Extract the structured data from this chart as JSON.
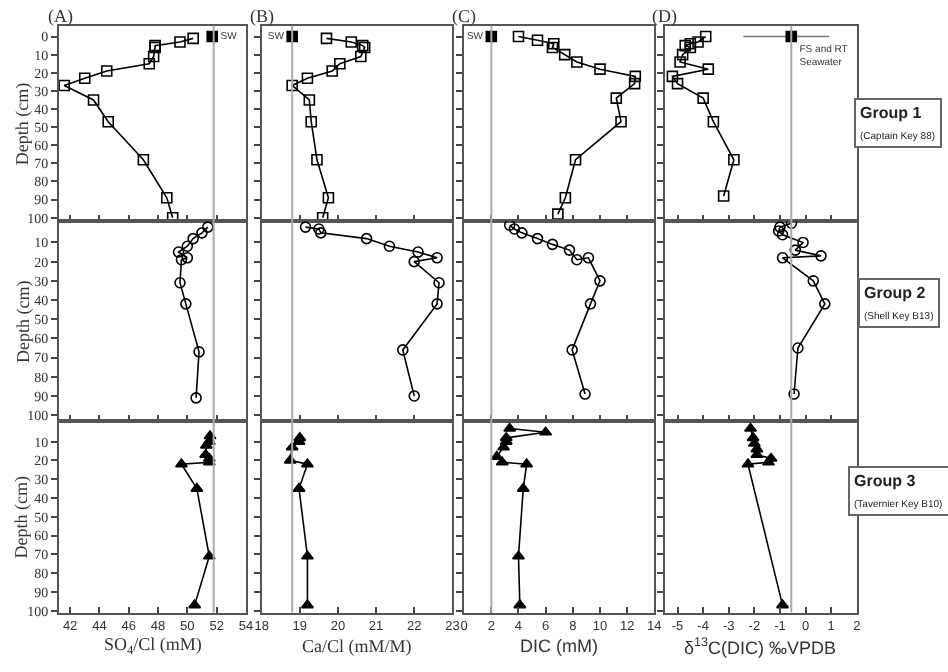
{
  "chart_data": [
    {
      "type": "line",
      "title": "(A)",
      "ylabel": "Depth (cm)",
      "marker": "square",
      "xlim": [
        41.25,
        54
      ],
      "xticks": [
        42,
        44,
        46,
        48,
        50,
        52,
        54
      ],
      "ylim": [
        102,
        -6
      ],
      "yticks": [
        0,
        10,
        20,
        30,
        40,
        50,
        60,
        70,
        80,
        90,
        100
      ],
      "tick_labels": "y",
      "ref_lines": [
        {
          "axis": "x",
          "value": 51.8,
          "color": "#aaaaaa"
        }
      ],
      "series": [
        {
          "color": "#000000",
          "x": [
            50.4,
            49.5,
            47.8,
            47.8,
            47.7,
            47.4,
            44.5,
            43.0,
            41.6,
            43.6,
            44.6,
            47.0,
            48.6,
            49.0
          ],
          "values": [
            1,
            3,
            5,
            6,
            11,
            15,
            19,
            23,
            27,
            35,
            47,
            68,
            89,
            100
          ]
        },
        {
          "type": "scatter",
          "name": "SW",
          "color": "#000000",
          "x": [
            51.7
          ],
          "values": [
            0
          ]
        }
      ]
    },
    {
      "type": "line",
      "title": "(B)",
      "marker": "square",
      "xlim": [
        18,
        23
      ],
      "xticks": [
        18,
        19,
        20,
        21,
        22,
        23
      ],
      "ylim": [
        102,
        -6
      ],
      "yticks": [
        0,
        10,
        20,
        30,
        40,
        50,
        60,
        70,
        80,
        90,
        100
      ],
      "tick_labels": false,
      "ref_lines": [
        {
          "axis": "x",
          "value": 18.8,
          "color": "#aaaaaa"
        }
      ],
      "series": [
        {
          "color": "#000000",
          "x": [
            19.7,
            20.35,
            20.65,
            20.7,
            20.6,
            20.05,
            19.85,
            19.2,
            18.8,
            19.25,
            19.3,
            19.45,
            19.75,
            19.6
          ],
          "values": [
            1,
            3,
            5,
            6,
            11,
            15,
            19,
            23,
            27,
            35,
            47,
            68,
            89,
            100
          ]
        },
        {
          "type": "scatter",
          "name": "SW",
          "color": "#000000",
          "x": [
            18.8
          ],
          "values": [
            0
          ]
        }
      ]
    },
    {
      "type": "line",
      "title": "(C)",
      "marker": "square",
      "xlim": [
        0,
        14
      ],
      "xticks": [
        0,
        2,
        4,
        6,
        8,
        10,
        12,
        14
      ],
      "ylim": [
        102,
        -6
      ],
      "yticks": [
        0,
        10,
        20,
        30,
        40,
        50,
        60,
        70,
        80,
        90,
        100
      ],
      "tick_labels": false,
      "ref_lines": [
        {
          "axis": "x",
          "value": 2.0,
          "color": "#aaaaaa"
        }
      ],
      "series": [
        {
          "color": "#000000",
          "x": [
            4.0,
            5.4,
            6.6,
            6.5,
            7.4,
            8.3,
            10.0,
            12.6,
            12.55,
            11.2,
            11.55,
            8.2,
            7.45,
            6.9
          ],
          "values": [
            0,
            2,
            4,
            6,
            10,
            14,
            18,
            22,
            26,
            34,
            47,
            68,
            89,
            98
          ]
        },
        {
          "type": "scatter",
          "name": "SW",
          "color": "#000000",
          "x": [
            2.0
          ],
          "values": [
            0
          ]
        }
      ]
    },
    {
      "type": "line",
      "title": "(D)",
      "marker": "square",
      "xlim": [
        -5.5,
        2
      ],
      "xticks": [
        -5,
        -4,
        -3,
        -2,
        -1,
        0,
        1,
        2
      ],
      "ylim": [
        102,
        -6
      ],
      "yticks": [
        0,
        10,
        20,
        30,
        40,
        50,
        60,
        70,
        80,
        90,
        100
      ],
      "tick_labels": false,
      "ref_lines": [
        {
          "axis": "x",
          "value": -0.56,
          "color": "#aaaaaa"
        }
      ],
      "annotations": [
        "Group 1",
        "(Captain Key 88)"
      ],
      "series": [
        {
          "color": "#000000",
          "x": [
            -3.9,
            -4.2,
            -4.5,
            -4.7,
            -4.5,
            -4.8,
            -4.9,
            -3.8,
            -5.2,
            -5.0,
            -4.0,
            -3.6,
            -2.8,
            -3.2
          ],
          "values": [
            0,
            3,
            4,
            5,
            6,
            10,
            14,
            18,
            22,
            26,
            34,
            47,
            68,
            88
          ]
        },
        {
          "type": "scatter",
          "name": "FS and RT\nSeawater",
          "color": "#000000",
          "x": [
            -0.56
          ],
          "values": [
            0
          ],
          "xerrors": [
            [
              -2.43,
              0.92
            ]
          ]
        }
      ]
    },
    {
      "type": "line",
      "ylabel": "Depth (cm)",
      "marker": "circle",
      "xlim": [
        41.25,
        54
      ],
      "xticks": [
        42,
        44,
        46,
        48,
        50,
        52,
        54
      ],
      "ylim": [
        103,
        -1
      ],
      "yticks": [
        10,
        20,
        30,
        40,
        50,
        60,
        70,
        80,
        90,
        100
      ],
      "tick_labels": "y",
      "ref_lines": [
        {
          "axis": "x",
          "value": 51.8,
          "color": "#aaaaaa"
        }
      ],
      "series": [
        {
          "color": "#000000",
          "x": [
            51.4,
            51.0,
            50.4,
            50.0,
            49.4,
            50.0,
            49.6,
            49.5,
            49.9,
            50.8,
            50.6
          ],
          "values": [
            2,
            5,
            8,
            12,
            15,
            18,
            19,
            31,
            42,
            67,
            91
          ]
        }
      ]
    },
    {
      "type": "line",
      "marker": "circle",
      "xlim": [
        18,
        23
      ],
      "xticks": [
        18,
        19,
        20,
        21,
        22,
        23
      ],
      "ylim": [
        103,
        -1
      ],
      "yticks": [
        10,
        20,
        30,
        40,
        50,
        60,
        70,
        80,
        90,
        100
      ],
      "tick_labels": false,
      "ref_lines": [
        {
          "axis": "x",
          "value": 18.8,
          "color": "#aaaaaa"
        }
      ],
      "series": [
        {
          "color": "#000000",
          "x": [
            19.15,
            19.5,
            19.55,
            20.75,
            21.35,
            22.1,
            22.6,
            22.0,
            22.65,
            22.6,
            21.7,
            22.0
          ],
          "values": [
            2,
            3,
            5,
            8,
            12,
            15,
            18,
            20,
            31,
            42,
            66,
            90
          ]
        }
      ]
    },
    {
      "type": "line",
      "marker": "circle",
      "xlim": [
        0,
        14
      ],
      "xticks": [
        0,
        2,
        4,
        6,
        8,
        10,
        12,
        14
      ],
      "ylim": [
        103,
        -1
      ],
      "yticks": [
        10,
        20,
        30,
        40,
        50,
        60,
        70,
        80,
        90,
        100
      ],
      "tick_labels": false,
      "ref_lines": [
        {
          "axis": "x",
          "value": 2.0,
          "color": "#aaaaaa"
        }
      ],
      "series": [
        {
          "color": "#000000",
          "x": [
            3.35,
            3.7,
            4.25,
            5.4,
            6.5,
            7.75,
            8.3,
            9.15,
            10.0,
            9.3,
            7.95,
            8.9
          ],
          "values": [
            1,
            3,
            5,
            8,
            11,
            14,
            19,
            18,
            30,
            42,
            66,
            89
          ]
        }
      ]
    },
    {
      "type": "line",
      "marker": "circle",
      "xlim": [
        -5.5,
        2
      ],
      "xticks": [
        -5,
        -4,
        -3,
        -2,
        -1,
        0,
        1,
        2
      ],
      "ylim": [
        103,
        -1
      ],
      "yticks": [
        10,
        20,
        30,
        40,
        50,
        60,
        70,
        80,
        90,
        100
      ],
      "tick_labels": false,
      "ref_lines": [
        {
          "axis": "x",
          "value": -0.56,
          "color": "#aaaaaa"
        }
      ],
      "annotations": [
        "Group 2",
        "(Shell Key B13)"
      ],
      "series": [
        {
          "color": "#000000",
          "x": [
            -0.55,
            -1.0,
            -1.05,
            -0.9,
            -0.1,
            -0.4,
            0.6,
            -0.9,
            0.3,
            0.75,
            -0.3,
            -0.45
          ],
          "values": [
            0,
            2,
            4,
            6,
            10,
            14,
            17,
            18,
            30,
            42,
            65,
            89
          ]
        }
      ]
    },
    {
      "type": "line",
      "ylabel": "Depth (cm)",
      "xlabel": "SO$_{4}$/Cl (mM)",
      "marker": "triangle",
      "xlim": [
        41.25,
        54
      ],
      "xticks": [
        42,
        44,
        46,
        48,
        50,
        52,
        54
      ],
      "ylim": [
        101,
        -1
      ],
      "yticks": [
        10,
        20,
        30,
        40,
        50,
        60,
        70,
        80,
        90,
        100
      ],
      "ref_lines": [
        {
          "axis": "x",
          "value": 51.8,
          "color": "#aaaaaa"
        }
      ],
      "series": [
        {
          "color": "#000000",
          "x": [
            51.55,
            51.5,
            51.3,
            51.25,
            51.5,
            51.5,
            49.6,
            50.65,
            51.5,
            50.5
          ],
          "values": [
            7,
            10,
            12,
            17,
            19,
            21,
            22,
            35,
            71,
            97
          ]
        }
      ]
    },
    {
      "type": "line",
      "xlabel": "Ca/Cl (mM/M)",
      "marker": "triangle",
      "xlim": [
        18,
        23
      ],
      "xticks": [
        18,
        19,
        20,
        21,
        22,
        23
      ],
      "ylim": [
        101,
        -1
      ],
      "yticks": [
        10,
        20,
        30,
        40,
        50,
        60,
        70,
        80,
        90,
        100
      ],
      "tick_labels": "x",
      "ref_lines": [
        {
          "axis": "x",
          "value": 18.8,
          "color": "#aaaaaa"
        }
      ],
      "series": [
        {
          "color": "#000000",
          "x": [
            19.0,
            18.98,
            18.8,
            18.75,
            19.2,
            18.98,
            19.2,
            19.2
          ],
          "values": [
            8,
            10,
            13,
            20,
            22,
            35,
            71,
            97
          ]
        }
      ]
    },
    {
      "type": "line",
      "xlabel": "DIC (mM)",
      "marker": "triangle",
      "xlim": [
        0,
        14
      ],
      "xticks": [
        0,
        2,
        4,
        6,
        8,
        10,
        12,
        14
      ],
      "ylim": [
        101,
        -1
      ],
      "yticks": [
        10,
        20,
        30,
        40,
        50,
        60,
        70,
        80,
        90,
        100
      ],
      "tick_labels": "x",
      "ref_lines": [
        {
          "axis": "x",
          "value": 2.0,
          "color": "#aaaaaa"
        }
      ],
      "series": [
        {
          "color": "#000000",
          "x": [
            3.35,
            6.0,
            3.1,
            3.1,
            2.9,
            2.4,
            2.8,
            4.6,
            4.35,
            4.0,
            4.1
          ],
          "values": [
            3,
            5,
            8,
            10,
            13,
            18,
            21,
            22,
            35,
            71,
            97
          ]
        }
      ]
    },
    {
      "type": "line",
      "xlabel": "δ$^{13}$C(DIC) ‰VPDB",
      "marker": "triangle",
      "xlim": [
        -5.5,
        2
      ],
      "xticks": [
        -5,
        -4,
        -3,
        -2,
        -1,
        0,
        1,
        2
      ],
      "ylim": [
        101,
        -1
      ],
      "yticks": [
        10,
        20,
        30,
        40,
        50,
        60,
        70,
        80,
        90,
        100
      ],
      "tick_labels": "x",
      "ref_lines": [
        {
          "axis": "x",
          "value": -0.56,
          "color": "#aaaaaa"
        }
      ],
      "annotations": [
        "Group 3",
        "(Tavernier Key B10)"
      ],
      "series": [
        {
          "color": "#000000",
          "x": [
            -2.15,
            -2.05,
            -2.0,
            -1.9,
            -1.9,
            -1.35,
            -1.45,
            -2.25,
            -0.9
          ],
          "values": [
            3,
            8,
            11,
            14,
            17,
            19,
            21,
            22,
            97
          ]
        }
      ]
    }
  ]
}
